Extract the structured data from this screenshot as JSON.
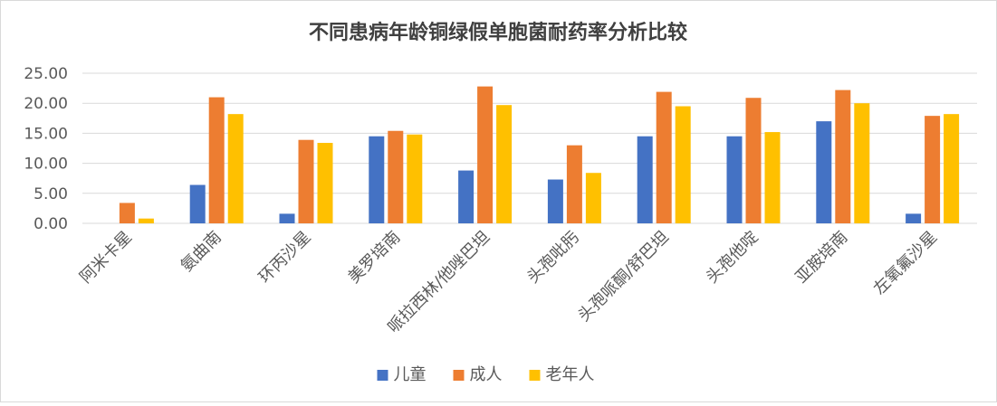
{
  "chart_data": {
    "type": "bar",
    "title": "不同患病年龄铜绿假单胞菌耐药率分析比较",
    "categories": [
      "阿米卡星",
      "氨曲南",
      "环丙沙星",
      "美罗培南",
      "哌拉西林/他唑巴坦",
      "头孢吡肟",
      "头孢哌酮/舒巴坦",
      "头孢他啶",
      "亚胺培南",
      "左氧氟沙星"
    ],
    "series": [
      {
        "name": "儿童",
        "color": "#4472c4",
        "values": [
          0.0,
          6.4,
          1.6,
          14.5,
          8.8,
          7.3,
          14.5,
          14.5,
          17.0,
          1.6
        ]
      },
      {
        "name": "成人",
        "color": "#ed7d31",
        "values": [
          3.4,
          21.0,
          13.9,
          15.4,
          22.8,
          13.0,
          21.9,
          20.9,
          22.2,
          17.9
        ]
      },
      {
        "name": "老年人",
        "color": "#ffc000",
        "values": [
          0.8,
          18.2,
          13.4,
          14.8,
          19.7,
          8.4,
          19.5,
          15.2,
          20.0,
          18.2
        ]
      }
    ],
    "yticks": [
      "0.00",
      "5.00",
      "10.00",
      "15.00",
      "20.00",
      "25.00"
    ],
    "ylim": [
      0,
      25
    ],
    "grid": true,
    "legend_position": "bottom"
  }
}
